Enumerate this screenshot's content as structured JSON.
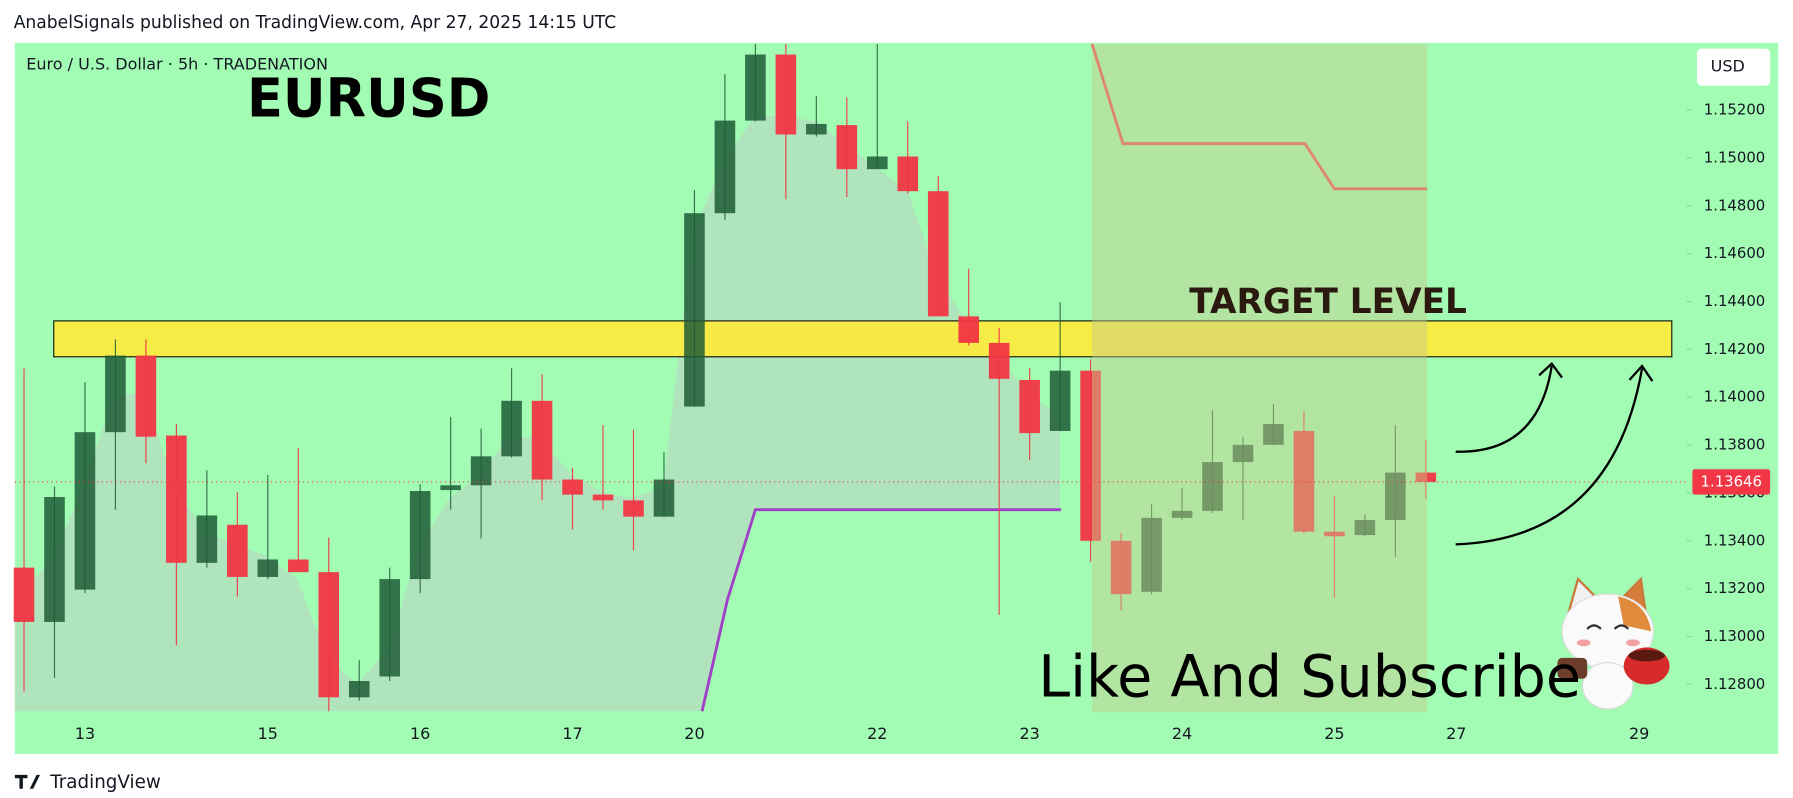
{
  "header": {
    "text": "AnabelSignals published on TradingView.com, Apr 27, 2025 14:15 UTC"
  },
  "chart_data": {
    "type": "candlestick",
    "symbol": "Euro / U.S. Dollar · 5h · TRADENATION",
    "title": "EURUSD",
    "target_label": "TARGET LEVEL",
    "call_to_action": "Like And Subscribe",
    "currency": "USD",
    "last_price": {
      "value": 1.13646,
      "label": "1.13646"
    },
    "up_color": "#1f5c36",
    "down_color": "#f23645",
    "background": "#a3fcb4",
    "categories": [
      null,
      null,
      "13",
      null,
      null,
      null,
      null,
      null,
      "15",
      null,
      null,
      null,
      null,
      "16",
      null,
      null,
      null,
      null,
      "17",
      null,
      null,
      null,
      "20",
      null,
      null,
      null,
      null,
      null,
      "22",
      null,
      null,
      null,
      null,
      "23",
      null,
      null,
      null,
      null,
      "24",
      null,
      null,
      null,
      null,
      "25",
      null,
      null,
      null,
      "27",
      null,
      null,
      null,
      null,
      null,
      "29",
      null
    ],
    "open": [
      1.13288,
      1.13061,
      1.13196,
      1.13854,
      1.14174,
      1.1384,
      1.13308,
      1.13467,
      1.13249,
      1.13322,
      1.13269,
      1.12746,
      1.12833,
      1.1324,
      1.13612,
      1.13632,
      1.13753,
      1.13985,
      1.13656,
      1.13593,
      1.13569,
      1.13501,
      1.13961,
      1.14769,
      1.15156,
      1.15432,
      1.15098,
      1.15137,
      1.14953,
      1.15006,
      1.14861,
      1.14338,
      1.14227,
      1.14072,
      1.13859,
      1.14111,
      1.134,
      1.13187,
      1.13496,
      1.13525,
      1.13729,
      1.13801,
      1.13859,
      1.13438,
      1.13424,
      1.13487,
      1.13685,
      null,
      null,
      null,
      null,
      null,
      null,
      null,
      null
    ],
    "high": [
      1.14121,
      1.13627,
      1.14063,
      1.14242,
      1.14242,
      1.13888,
      1.13695,
      1.13603,
      1.13675,
      1.13787,
      1.13414,
      1.12901,
      1.13288,
      1.13637,
      1.13917,
      1.13869,
      1.14121,
      1.14096,
      1.13704,
      1.13884,
      1.13864,
      1.13772,
      1.14866,
      1.1535,
      1.15476,
      1.15476,
      1.15258,
      1.15253,
      1.15476,
      1.15152,
      1.14924,
      1.14537,
      1.1429,
      1.14121,
      1.14397,
      1.14159,
      1.13433,
      1.13554,
      1.13622,
      1.13946,
      1.13835,
      1.13971,
      1.13942,
      1.13588,
      1.13511,
      1.13884,
      1.13821,
      null,
      null,
      null,
      null,
      null,
      null,
      null,
      null
    ],
    "low": [
      1.1277,
      1.12828,
      1.13182,
      1.1353,
      1.13724,
      1.12964,
      1.13288,
      1.13167,
      1.1324,
      1.13269,
      1.12688,
      1.12732,
      1.12814,
      1.13182,
      1.1353,
      1.13409,
      1.13748,
      1.13569,
      1.13448,
      1.1353,
      1.13361,
      1.13501,
      1.13961,
      1.1474,
      1.15152,
      1.14827,
      1.15089,
      1.14837,
      1.14953,
      1.14852,
      1.14338,
      1.14217,
      1.1309,
      1.13738,
      1.13859,
      1.13312,
      1.13109,
      1.13177,
      1.13487,
      1.13516,
      1.13487,
      1.13801,
      1.13429,
      1.13162,
      1.13419,
      1.13332,
      1.13574,
      null,
      null,
      null,
      null,
      null,
      null,
      null,
      null
    ],
    "close": [
      1.13061,
      1.13583,
      1.13854,
      1.14174,
      1.13835,
      1.13308,
      1.13506,
      1.13249,
      1.13322,
      1.13269,
      1.12746,
      1.12814,
      1.1324,
      1.13608,
      1.13632,
      1.13753,
      1.13985,
      1.13656,
      1.13593,
      1.13569,
      1.13501,
      1.13656,
      1.14769,
      1.15156,
      1.15432,
      1.15098,
      1.15142,
      1.14953,
      1.15006,
      1.14861,
      1.14338,
      1.14227,
      1.14077,
      1.1385,
      1.14111,
      1.134,
      1.13177,
      1.13496,
      1.13525,
      1.13729,
      1.13801,
      1.13888,
      1.13438,
      1.13419,
      1.13487,
      1.13685,
      1.13646,
      null,
      null,
      null,
      null,
      null,
      null,
      null,
      null
    ],
    "ylim": [
      1.12514,
      1.15476
    ],
    "yticks": [
      {
        "value": 1.128,
        "label": "1.12800"
      },
      {
        "value": 1.13,
        "label": "1.13000"
      },
      {
        "value": 1.132,
        "label": "1.13200"
      },
      {
        "value": 1.134,
        "label": "1.13400"
      },
      {
        "value": 1.136,
        "label": "1.13600"
      },
      {
        "value": 1.138,
        "label": "1.13800"
      },
      {
        "value": 1.14,
        "label": "1.14000"
      },
      {
        "value": 1.142,
        "label": "1.14200"
      },
      {
        "value": 1.144,
        "label": "1.14400"
      },
      {
        "value": 1.146,
        "label": "1.14600"
      },
      {
        "value": 1.148,
        "label": "1.14800"
      },
      {
        "value": 1.15,
        "label": "1.15000"
      },
      {
        "value": 1.152,
        "label": "1.15200"
      }
    ],
    "target_zone": [
      1.14169,
      1.14319
    ],
    "target_zone_color": "#ffeb3b",
    "lines": [
      {
        "color": "#f0505a",
        "x": [
          35.05,
          36.06,
          42.03,
          43.0,
          46.04
        ],
        "values": [
          1.15476,
          1.1506,
          1.1506,
          1.14871,
          1.14871
        ]
      },
      {
        "color": "#a040c8",
        "x": [
          22.25,
          23.08,
          24.0,
          34.03
        ],
        "values": [
          1.12688,
          1.13153,
          1.1353,
          1.1353
        ]
      }
    ]
  },
  "footer": {
    "brand": "TradingView"
  }
}
